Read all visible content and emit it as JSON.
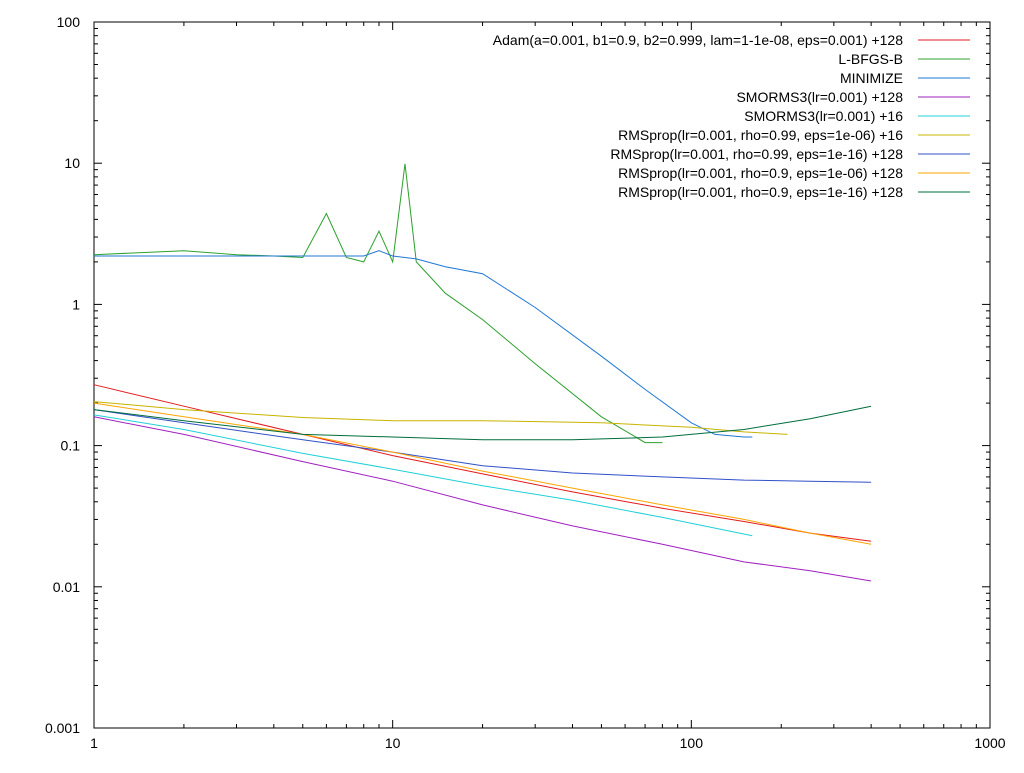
{
  "chart_data": {
    "type": "line",
    "title": "",
    "xlabel": "",
    "ylabel": "",
    "xscale": "log",
    "yscale": "log",
    "xlim": [
      1,
      1000
    ],
    "ylim": [
      0.001,
      100
    ],
    "grid": false,
    "legend_position": "top-right",
    "x_ticks": [
      1,
      10,
      100,
      1000
    ],
    "x_tick_labels": [
      "1",
      "10",
      "100",
      "1000"
    ],
    "y_ticks": [
      0.001,
      0.01,
      0.1,
      1,
      10,
      100
    ],
    "y_tick_labels": [
      "0.001",
      "0.01",
      "0.1",
      "1",
      "10",
      "100"
    ],
    "series": [
      {
        "name": "Adam(a=0.001, b1=0.9, b2=0.999, lam=1-1e-08, eps=0.001) +128",
        "color": "#e41a1c",
        "x": [
          1,
          2,
          5,
          10,
          20,
          40,
          80,
          150,
          250,
          400
        ],
        "y": [
          0.27,
          0.19,
          0.12,
          0.085,
          0.063,
          0.047,
          0.036,
          0.029,
          0.024,
          0.021
        ]
      },
      {
        "name": "L-BFGS-B",
        "color": "#2ca02c",
        "x": [
          1,
          2,
          3,
          4,
          5,
          6,
          7,
          8,
          9,
          10,
          11,
          12,
          15,
          20,
          30,
          50,
          70,
          80
        ],
        "y": [
          2.25,
          2.4,
          2.25,
          2.2,
          2.15,
          4.4,
          2.15,
          2.0,
          3.3,
          2.0,
          9.9,
          2.0,
          1.2,
          0.78,
          0.38,
          0.16,
          0.105,
          0.105
        ]
      },
      {
        "name": "MINIMIZE",
        "color": "#1f77d4",
        "x": [
          1,
          2,
          5,
          8,
          9,
          10,
          12,
          15,
          20,
          30,
          50,
          70,
          100,
          120,
          150,
          160
        ],
        "y": [
          2.2,
          2.2,
          2.2,
          2.2,
          2.4,
          2.2,
          2.1,
          1.85,
          1.65,
          0.95,
          0.43,
          0.25,
          0.145,
          0.12,
          0.115,
          0.115
        ]
      },
      {
        "name": "SMORMS3(lr=0.001) +128",
        "color": "#a020c0",
        "x": [
          1,
          2,
          5,
          10,
          20,
          40,
          80,
          150,
          250,
          400
        ],
        "y": [
          0.16,
          0.12,
          0.077,
          0.056,
          0.038,
          0.027,
          0.02,
          0.015,
          0.013,
          0.011
        ]
      },
      {
        "name": "SMORMS3(lr=0.001) +16",
        "color": "#20d0d8",
        "x": [
          1,
          2,
          5,
          10,
          20,
          40,
          80,
          160
        ],
        "y": [
          0.165,
          0.13,
          0.088,
          0.068,
          0.052,
          0.041,
          0.031,
          0.023
        ]
      },
      {
        "name": "RMSprop(lr=0.001, rho=0.99, eps=1e-06) +16",
        "color": "#c8b400",
        "x": [
          1,
          2,
          5,
          10,
          20,
          50,
          100,
          150,
          210
        ],
        "y": [
          0.205,
          0.18,
          0.158,
          0.15,
          0.15,
          0.145,
          0.135,
          0.125,
          0.12
        ]
      },
      {
        "name": "RMSprop(lr=0.001, rho=0.99, eps=1e-16) +128",
        "color": "#3050c8",
        "x": [
          1,
          2,
          5,
          10,
          20,
          40,
          80,
          150,
          250,
          400
        ],
        "y": [
          0.18,
          0.145,
          0.11,
          0.09,
          0.072,
          0.064,
          0.06,
          0.057,
          0.056,
          0.055
        ]
      },
      {
        "name": "RMSprop(lr=0.001, rho=0.9, eps=1e-06) +128",
        "color": "#ffa500",
        "x": [
          1,
          2,
          5,
          10,
          20,
          40,
          80,
          150,
          250,
          400
        ],
        "y": [
          0.2,
          0.16,
          0.12,
          0.09,
          0.066,
          0.05,
          0.038,
          0.03,
          0.024,
          0.02
        ]
      },
      {
        "name": "RMSprop(lr=0.001, rho=0.9, eps=1e-16) +128",
        "color": "#006d3c",
        "x": [
          1,
          2,
          5,
          10,
          20,
          40,
          80,
          150,
          250,
          400
        ],
        "y": [
          0.18,
          0.15,
          0.12,
          0.115,
          0.11,
          0.11,
          0.115,
          0.13,
          0.155,
          0.19
        ]
      }
    ]
  }
}
